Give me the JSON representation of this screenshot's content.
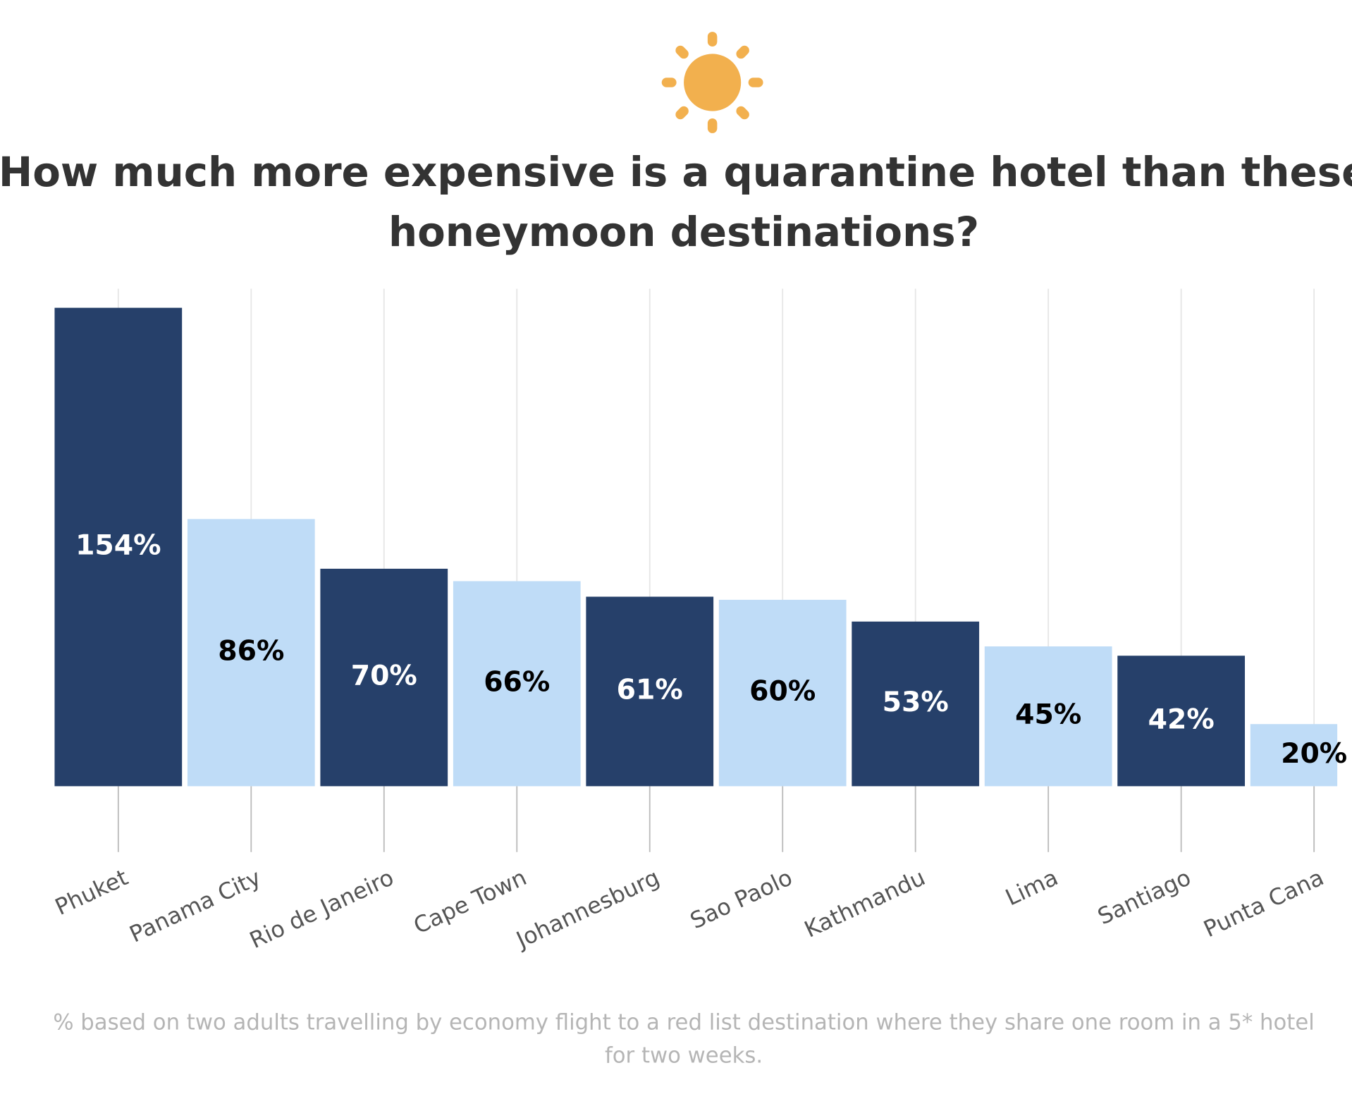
{
  "chart_data": {
    "type": "bar",
    "title": [
      "How much more expensive is a quarantine hotel than these",
      "honeymoon destinations?"
    ],
    "categories": [
      "Phuket",
      "Panama City",
      "Rio de Janeiro",
      "Cape Town",
      "Johannesburg",
      "Sao Paolo",
      "Kathmandu",
      "Lima",
      "Santiago",
      "Punta Cana"
    ],
    "values": [
      154,
      86,
      70,
      66,
      61,
      60,
      53,
      45,
      42,
      20
    ],
    "value_labels": [
      "154%",
      "86%",
      "70%",
      "66%",
      "61%",
      "60%",
      "53%",
      "45%",
      "42%",
      "20%"
    ],
    "colors": [
      "#26406a",
      "#bfdcf7",
      "#26406a",
      "#bfdcf7",
      "#26406a",
      "#bfdcf7",
      "#26406a",
      "#bfdcf7",
      "#26406a",
      "#bfdcf7"
    ],
    "grid": true,
    "note": [
      "% based on two adults travelling by economy flight to a red list destination where they share one room in a 5* hotel",
      "for two weeks."
    ]
  }
}
